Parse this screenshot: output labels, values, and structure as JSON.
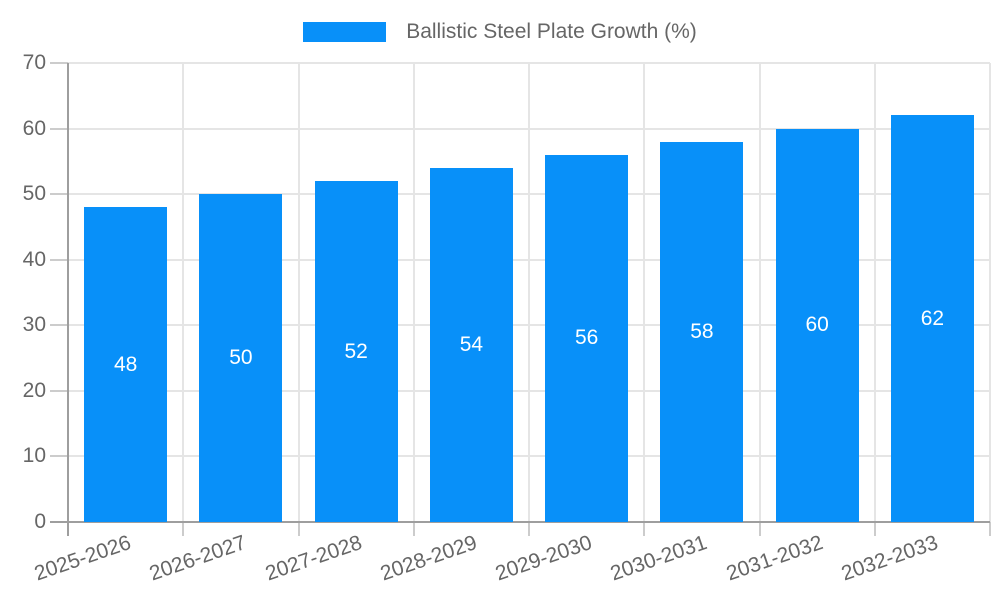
{
  "chart_data": {
    "type": "bar",
    "legend_label": "Ballistic Steel Plate Growth (%)",
    "legend_position": "top",
    "categories": [
      "2025-2026",
      "2026-2027",
      "2027-2028",
      "2028-2029",
      "2029-2030",
      "2030-2031",
      "2031-2032",
      "2032-2033"
    ],
    "values": [
      48,
      50,
      52,
      54,
      56,
      58,
      60,
      62
    ],
    "ylim": [
      0,
      70
    ],
    "yticks": [
      0,
      10,
      20,
      30,
      40,
      50,
      60,
      70
    ],
    "grid": true,
    "xlabel": "",
    "ylabel": "",
    "colors": {
      "bar": "#0890f9",
      "bar_label": "#ffffff",
      "axis_text": "#666666",
      "axis_line": "#9e9e9e",
      "gridline": "#e5e5e5",
      "tickmark": "#cccccc",
      "background": "#ffffff"
    }
  }
}
